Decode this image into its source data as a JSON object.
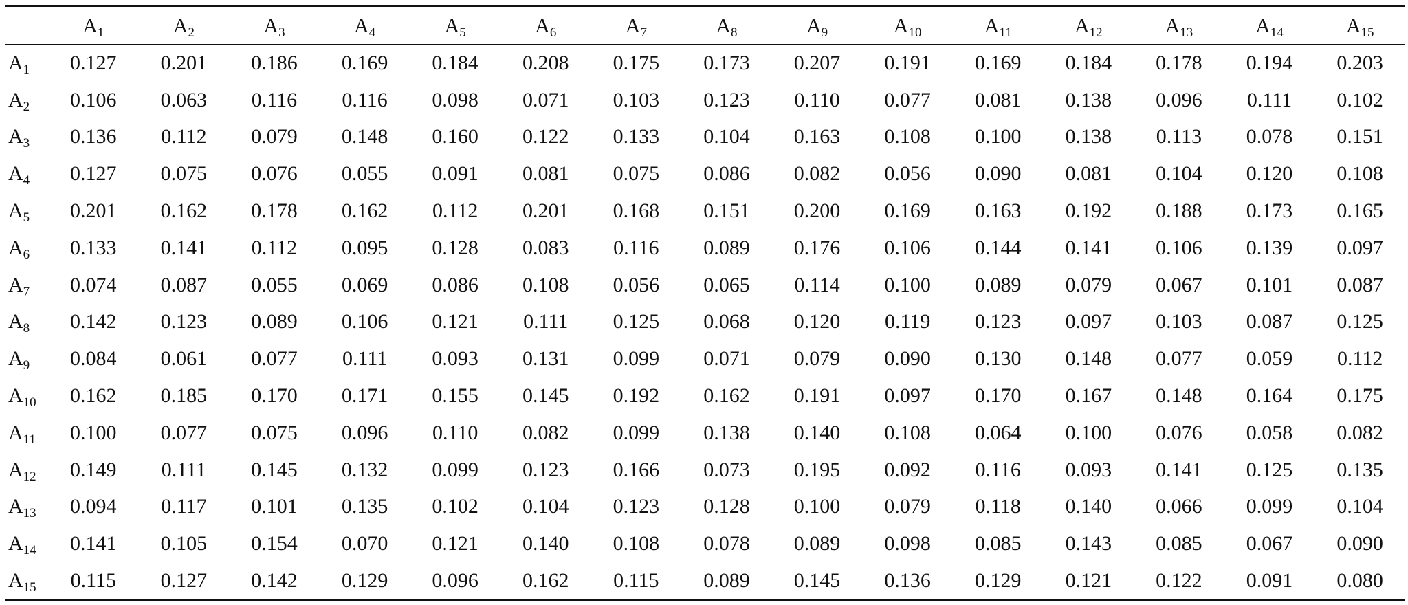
{
  "table": {
    "columns": [
      {
        "base": "",
        "sub": ""
      },
      {
        "base": "A",
        "sub": "1"
      },
      {
        "base": "A",
        "sub": "2"
      },
      {
        "base": "A",
        "sub": "3"
      },
      {
        "base": "A",
        "sub": "4"
      },
      {
        "base": "A",
        "sub": "5"
      },
      {
        "base": "A",
        "sub": "6"
      },
      {
        "base": "A",
        "sub": "7"
      },
      {
        "base": "A",
        "sub": "8"
      },
      {
        "base": "A",
        "sub": "9"
      },
      {
        "base": "A",
        "sub": "10"
      },
      {
        "base": "A",
        "sub": "11"
      },
      {
        "base": "A",
        "sub": "12"
      },
      {
        "base": "A",
        "sub": "13"
      },
      {
        "base": "A",
        "sub": "14"
      },
      {
        "base": "A",
        "sub": "15"
      }
    ],
    "rows": [
      {
        "label": {
          "base": "A",
          "sub": "1"
        },
        "values": [
          "0.127",
          "0.201",
          "0.186",
          "0.169",
          "0.184",
          "0.208",
          "0.175",
          "0.173",
          "0.207",
          "0.191",
          "0.169",
          "0.184",
          "0.178",
          "0.194",
          "0.203"
        ]
      },
      {
        "label": {
          "base": "A",
          "sub": "2"
        },
        "values": [
          "0.106",
          "0.063",
          "0.116",
          "0.116",
          "0.098",
          "0.071",
          "0.103",
          "0.123",
          "0.110",
          "0.077",
          "0.081",
          "0.138",
          "0.096",
          "0.111",
          "0.102"
        ]
      },
      {
        "label": {
          "base": "A",
          "sub": "3"
        },
        "values": [
          "0.136",
          "0.112",
          "0.079",
          "0.148",
          "0.160",
          "0.122",
          "0.133",
          "0.104",
          "0.163",
          "0.108",
          "0.100",
          "0.138",
          "0.113",
          "0.078",
          "0.151"
        ]
      },
      {
        "label": {
          "base": "A",
          "sub": "4"
        },
        "values": [
          "0.127",
          "0.075",
          "0.076",
          "0.055",
          "0.091",
          "0.081",
          "0.075",
          "0.086",
          "0.082",
          "0.056",
          "0.090",
          "0.081",
          "0.104",
          "0.120",
          "0.108"
        ]
      },
      {
        "label": {
          "base": "A",
          "sub": "5"
        },
        "values": [
          "0.201",
          "0.162",
          "0.178",
          "0.162",
          "0.112",
          "0.201",
          "0.168",
          "0.151",
          "0.200",
          "0.169",
          "0.163",
          "0.192",
          "0.188",
          "0.173",
          "0.165"
        ]
      },
      {
        "label": {
          "base": "A",
          "sub": "6"
        },
        "values": [
          "0.133",
          "0.141",
          "0.112",
          "0.095",
          "0.128",
          "0.083",
          "0.116",
          "0.089",
          "0.176",
          "0.106",
          "0.144",
          "0.141",
          "0.106",
          "0.139",
          "0.097"
        ]
      },
      {
        "label": {
          "base": "A",
          "sub": "7"
        },
        "values": [
          "0.074",
          "0.087",
          "0.055",
          "0.069",
          "0.086",
          "0.108",
          "0.056",
          "0.065",
          "0.114",
          "0.100",
          "0.089",
          "0.079",
          "0.067",
          "0.101",
          "0.087"
        ]
      },
      {
        "label": {
          "base": "A",
          "sub": "8"
        },
        "values": [
          "0.142",
          "0.123",
          "0.089",
          "0.106",
          "0.121",
          "0.111",
          "0.125",
          "0.068",
          "0.120",
          "0.119",
          "0.123",
          "0.097",
          "0.103",
          "0.087",
          "0.125"
        ]
      },
      {
        "label": {
          "base": "A",
          "sub": "9"
        },
        "values": [
          "0.084",
          "0.061",
          "0.077",
          "0.111",
          "0.093",
          "0.131",
          "0.099",
          "0.071",
          "0.079",
          "0.090",
          "0.130",
          "0.148",
          "0.077",
          "0.059",
          "0.112"
        ]
      },
      {
        "label": {
          "base": "A",
          "sub": "10"
        },
        "values": [
          "0.162",
          "0.185",
          "0.170",
          "0.171",
          "0.155",
          "0.145",
          "0.192",
          "0.162",
          "0.191",
          "0.097",
          "0.170",
          "0.167",
          "0.148",
          "0.164",
          "0.175"
        ]
      },
      {
        "label": {
          "base": "A",
          "sub": "11"
        },
        "values": [
          "0.100",
          "0.077",
          "0.075",
          "0.096",
          "0.110",
          "0.082",
          "0.099",
          "0.138",
          "0.140",
          "0.108",
          "0.064",
          "0.100",
          "0.076",
          "0.058",
          "0.082"
        ]
      },
      {
        "label": {
          "base": "A",
          "sub": "12"
        },
        "values": [
          "0.149",
          "0.111",
          "0.145",
          "0.132",
          "0.099",
          "0.123",
          "0.166",
          "0.073",
          "0.195",
          "0.092",
          "0.116",
          "0.093",
          "0.141",
          "0.125",
          "0.135"
        ]
      },
      {
        "label": {
          "base": "A",
          "sub": "13"
        },
        "values": [
          "0.094",
          "0.117",
          "0.101",
          "0.135",
          "0.102",
          "0.104",
          "0.123",
          "0.128",
          "0.100",
          "0.079",
          "0.118",
          "0.140",
          "0.066",
          "0.099",
          "0.104"
        ]
      },
      {
        "label": {
          "base": "A",
          "sub": "14"
        },
        "values": [
          "0.141",
          "0.105",
          "0.154",
          "0.070",
          "0.121",
          "0.140",
          "0.108",
          "0.078",
          "0.089",
          "0.098",
          "0.085",
          "0.143",
          "0.085",
          "0.067",
          "0.090"
        ]
      },
      {
        "label": {
          "base": "A",
          "sub": "15"
        },
        "values": [
          "0.115",
          "0.127",
          "0.142",
          "0.129",
          "0.096",
          "0.162",
          "0.115",
          "0.089",
          "0.145",
          "0.136",
          "0.129",
          "0.121",
          "0.122",
          "0.091",
          "0.080"
        ]
      }
    ]
  }
}
